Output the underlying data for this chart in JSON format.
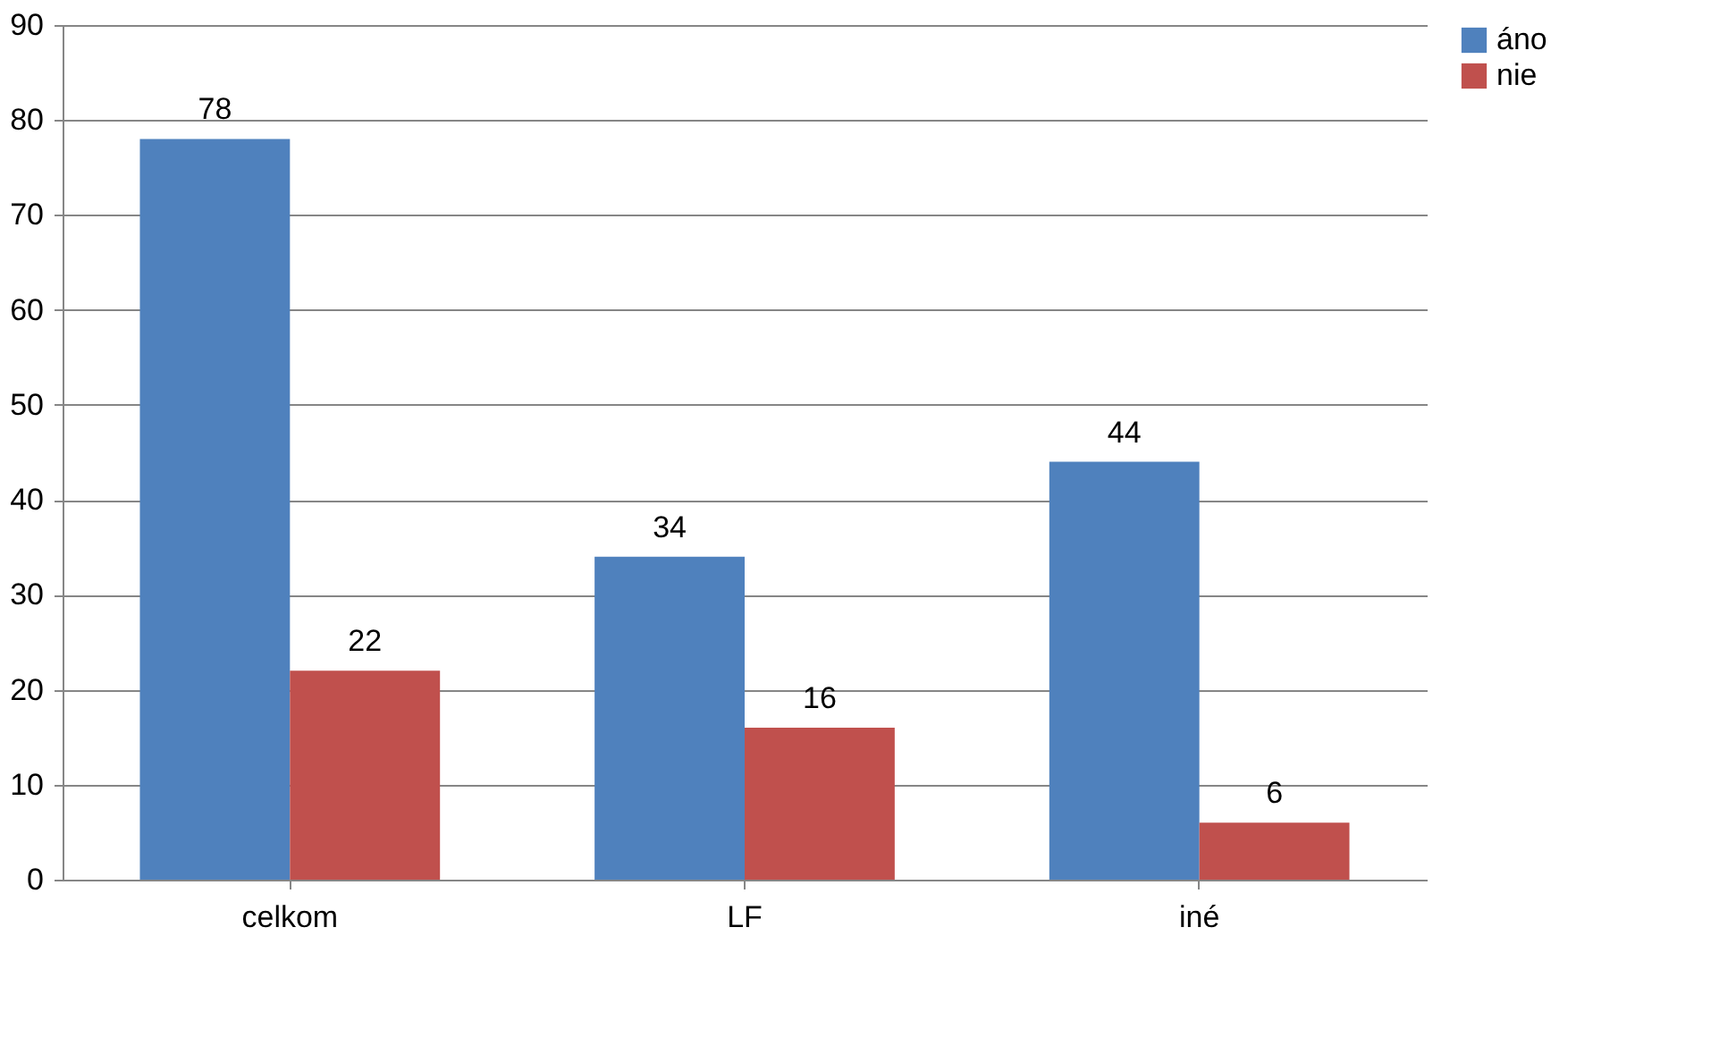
{
  "chart_data": {
    "type": "bar",
    "categories": [
      "celkom",
      "LF",
      "iné"
    ],
    "series": [
      {
        "name": "áno",
        "color": "#4f81bd",
        "values": [
          78,
          34,
          44
        ]
      },
      {
        "name": "nie",
        "color": "#c0504d",
        "values": [
          22,
          16,
          6
        ]
      }
    ],
    "ylim": [
      0,
      90
    ],
    "yticks": [
      0,
      10,
      20,
      30,
      40,
      50,
      60,
      70,
      80,
      90
    ],
    "grid": "y",
    "legend": "right",
    "data_labels": true
  }
}
